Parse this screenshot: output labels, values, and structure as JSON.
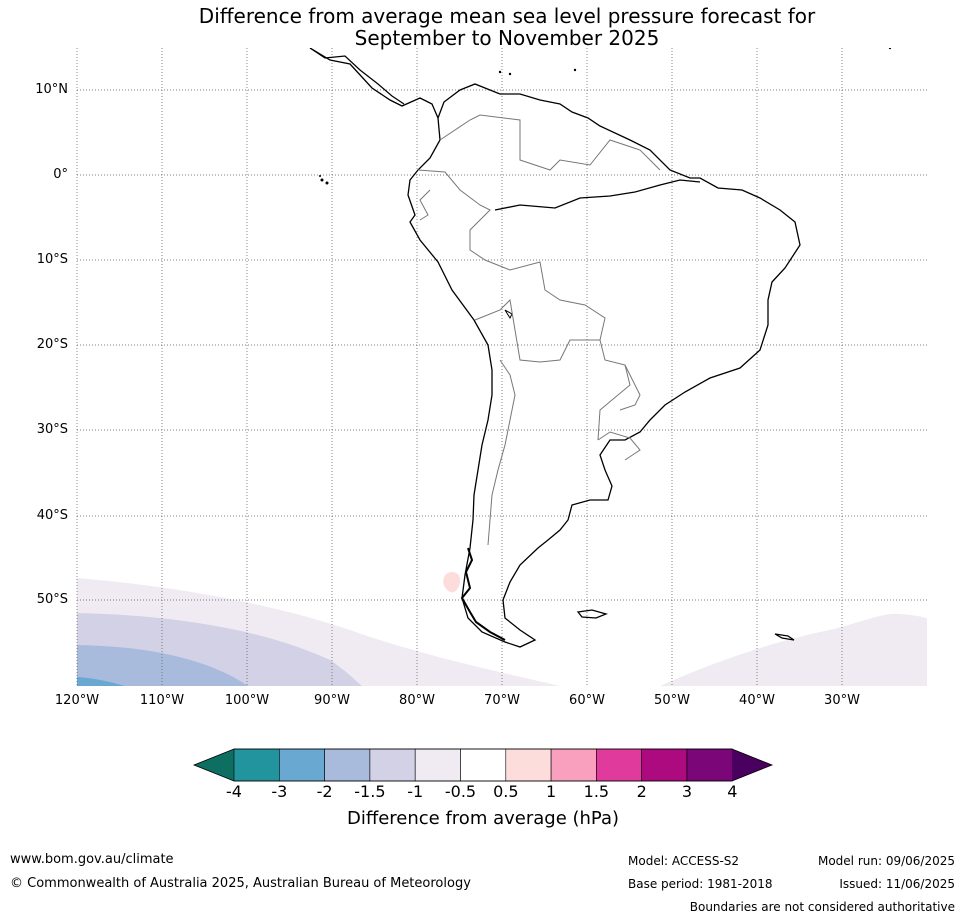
{
  "title": {
    "line1": "Difference from average mean sea level pressure forecast for",
    "line2": "September to November 2025"
  },
  "lat_labels": [
    "10°N",
    "0°",
    "10°S",
    "20°S",
    "30°S",
    "40°S",
    "50°S"
  ],
  "lon_labels": [
    "120°W",
    "110°W",
    "100°W",
    "90°W",
    "80°W",
    "70°W",
    "60°W",
    "50°W",
    "40°W",
    "30°W"
  ],
  "colorbar": {
    "title": "Difference from average (hPa)",
    "tick_labels": [
      "-4",
      "-3",
      "-2",
      "-1.5",
      "-1",
      "-0.5",
      "0.5",
      "1",
      "1.5",
      "2",
      "3",
      "4"
    ],
    "colors": [
      "#0e6e62",
      "#21949e",
      "#69a8d1",
      "#a8bbdc",
      "#d2d1e6",
      "#f0ebf2",
      "#ffffff",
      "#fddcdc",
      "#f8a0bd",
      "#e03a9c",
      "#ae0a80",
      "#7a0677",
      "#4a005f"
    ]
  },
  "footer": {
    "website": "www.bom.gov.au/climate",
    "copyright": "© Commonwealth of Australia 2025, Australian Bureau of Meteorology",
    "model": "Model: ACCESS-S2",
    "base_period": "Base period: 1981-2018",
    "model_run": "Model run: 09/06/2025",
    "issued": "Issued: 11/06/2025",
    "disclaimer": "Boundaries are not considered authoritative"
  }
}
